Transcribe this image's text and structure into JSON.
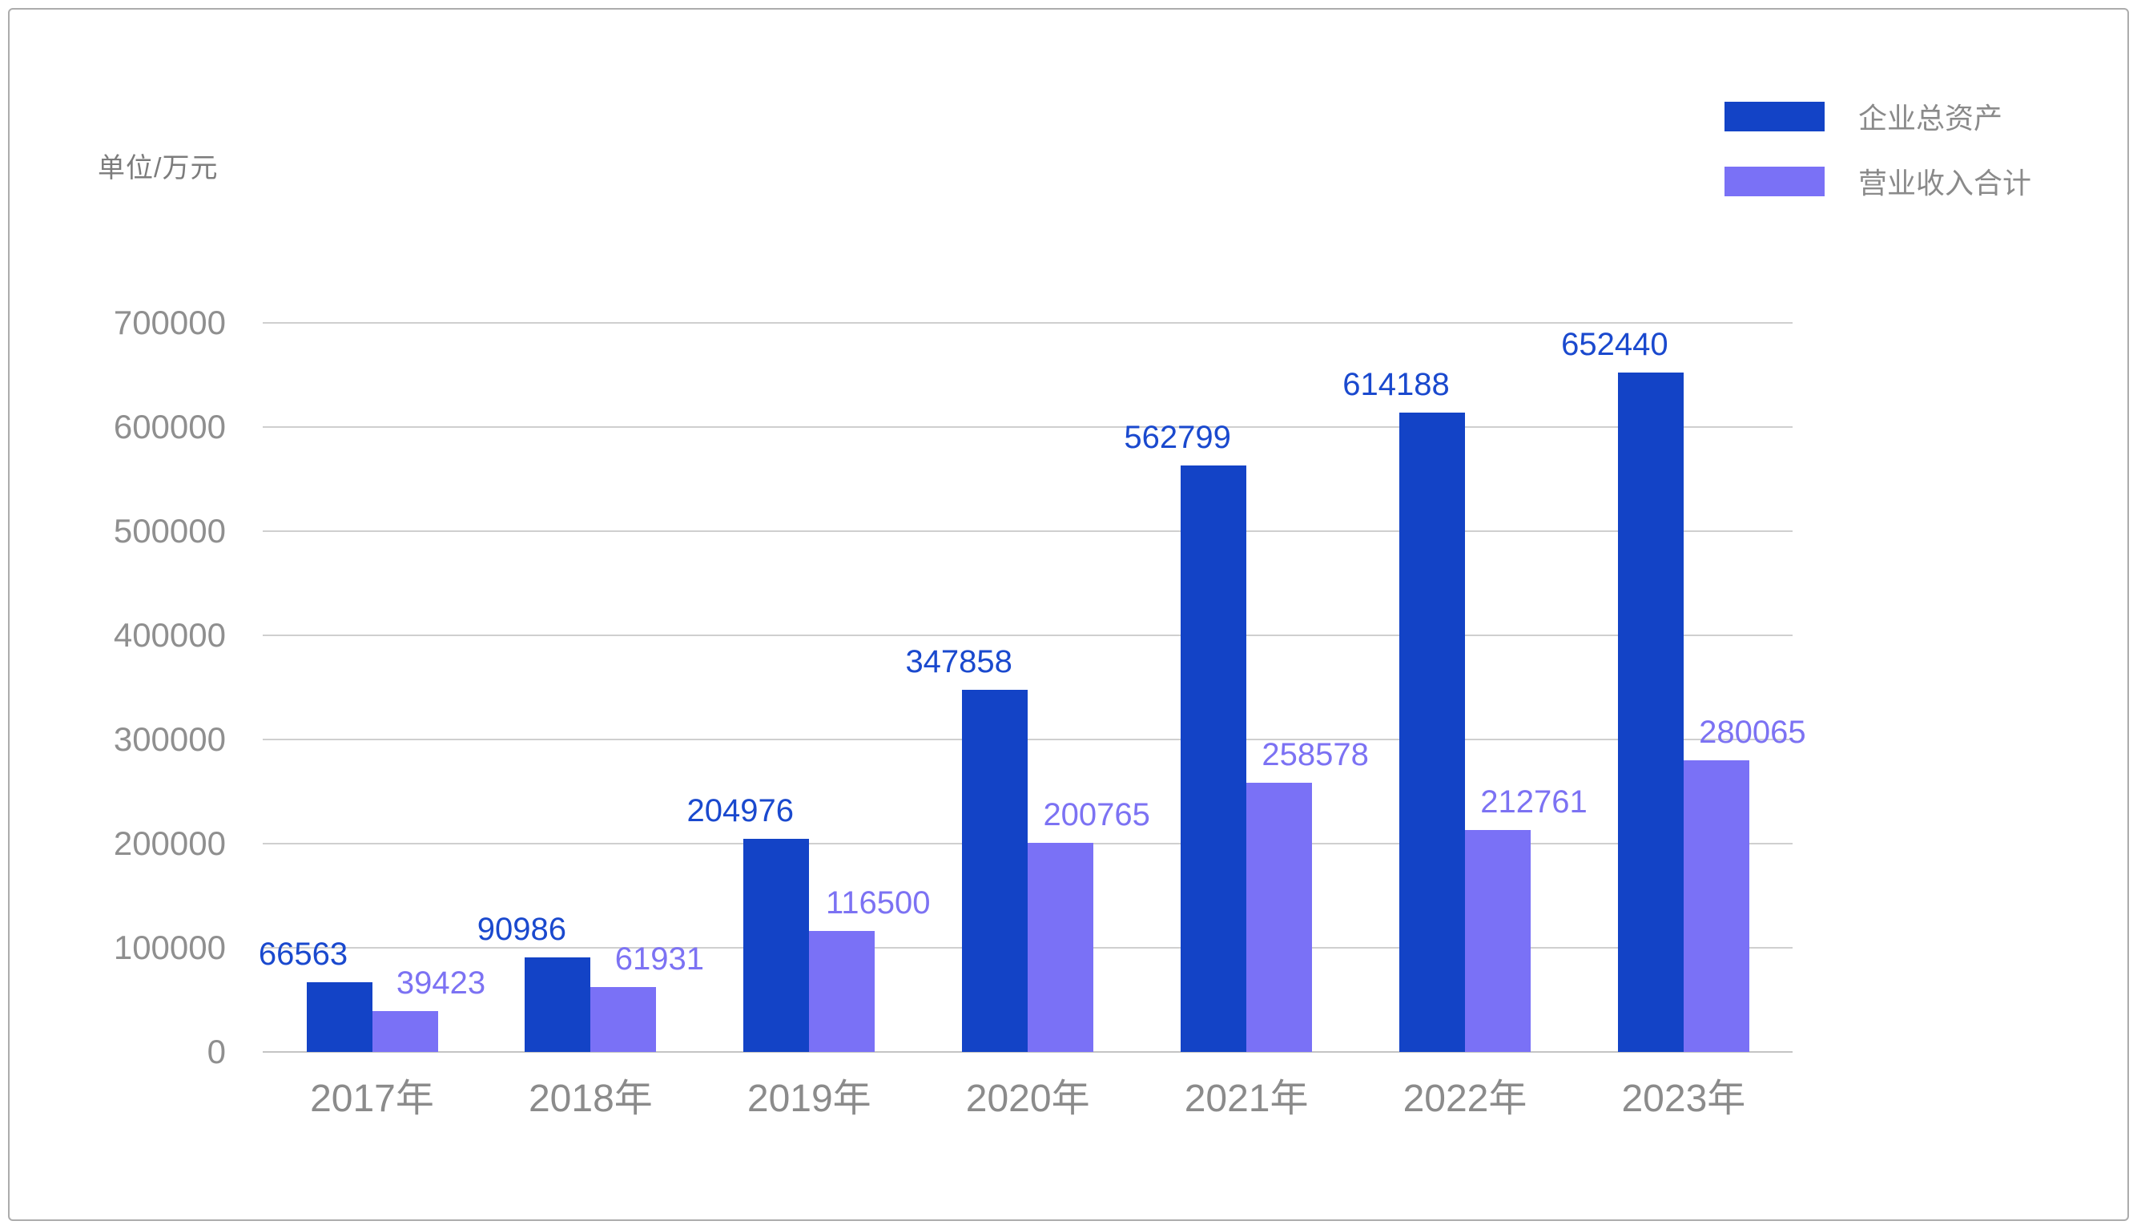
{
  "unit_label": "单位/万元",
  "legend": {
    "items": [
      {
        "label": "企业总资产"
      },
      {
        "label": "营业收入合计"
      }
    ]
  },
  "chart_data": {
    "type": "bar",
    "title": "",
    "unit_label": "单位/万元",
    "categories": [
      "2017年",
      "2018年",
      "2019年",
      "2020年",
      "2021年",
      "2022年",
      "2023年"
    ],
    "series": [
      {
        "name": "企业总资产",
        "color": "#1343c6",
        "label_color": "#1a49ce",
        "values": [
          66563,
          90986,
          204976,
          347858,
          562799,
          614188,
          652440
        ]
      },
      {
        "name": "营业收入合计",
        "color": "#7a71f6",
        "label_color": "#7c72f3",
        "values": [
          39423,
          61931,
          116500,
          200765,
          258578,
          212761,
          280065
        ]
      }
    ],
    "ylim": [
      0,
      700000
    ],
    "y_ticks": [
      "0",
      "100000",
      "200000",
      "300000",
      "400000",
      "500000",
      "600000",
      "700000"
    ],
    "grid": true,
    "legend_position": "top-right",
    "value_labels": true
  }
}
